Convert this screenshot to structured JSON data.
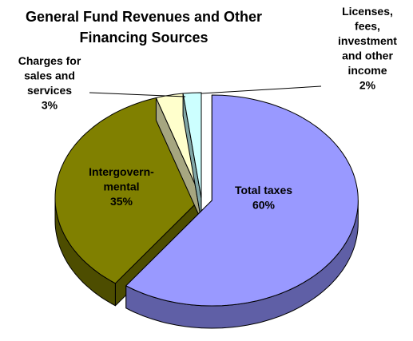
{
  "chart_data": {
    "type": "pie3d",
    "title": [
      "General Fund Revenues and Other",
      "Financing Sources"
    ],
    "categories": [
      [
        "Total taxes"
      ],
      [
        "Intergovern-",
        "mental"
      ],
      [
        "Charges for",
        "sales and",
        "services"
      ],
      [
        "Licenses,",
        "fees,",
        "investment",
        "and other",
        "income"
      ]
    ],
    "values": [
      60,
      35,
      3,
      2
    ],
    "value_labels": [
      "60%",
      "35%",
      "3%",
      "2%"
    ],
    "colors": [
      "#9999ff",
      "#808000",
      "#ffffcc",
      "#ccffff"
    ],
    "side_colors": [
      "#5f5fa6",
      "#4d4d00",
      "#a6a680",
      "#80a6a6"
    ],
    "exploded": [
      true,
      false,
      false,
      false
    ]
  }
}
